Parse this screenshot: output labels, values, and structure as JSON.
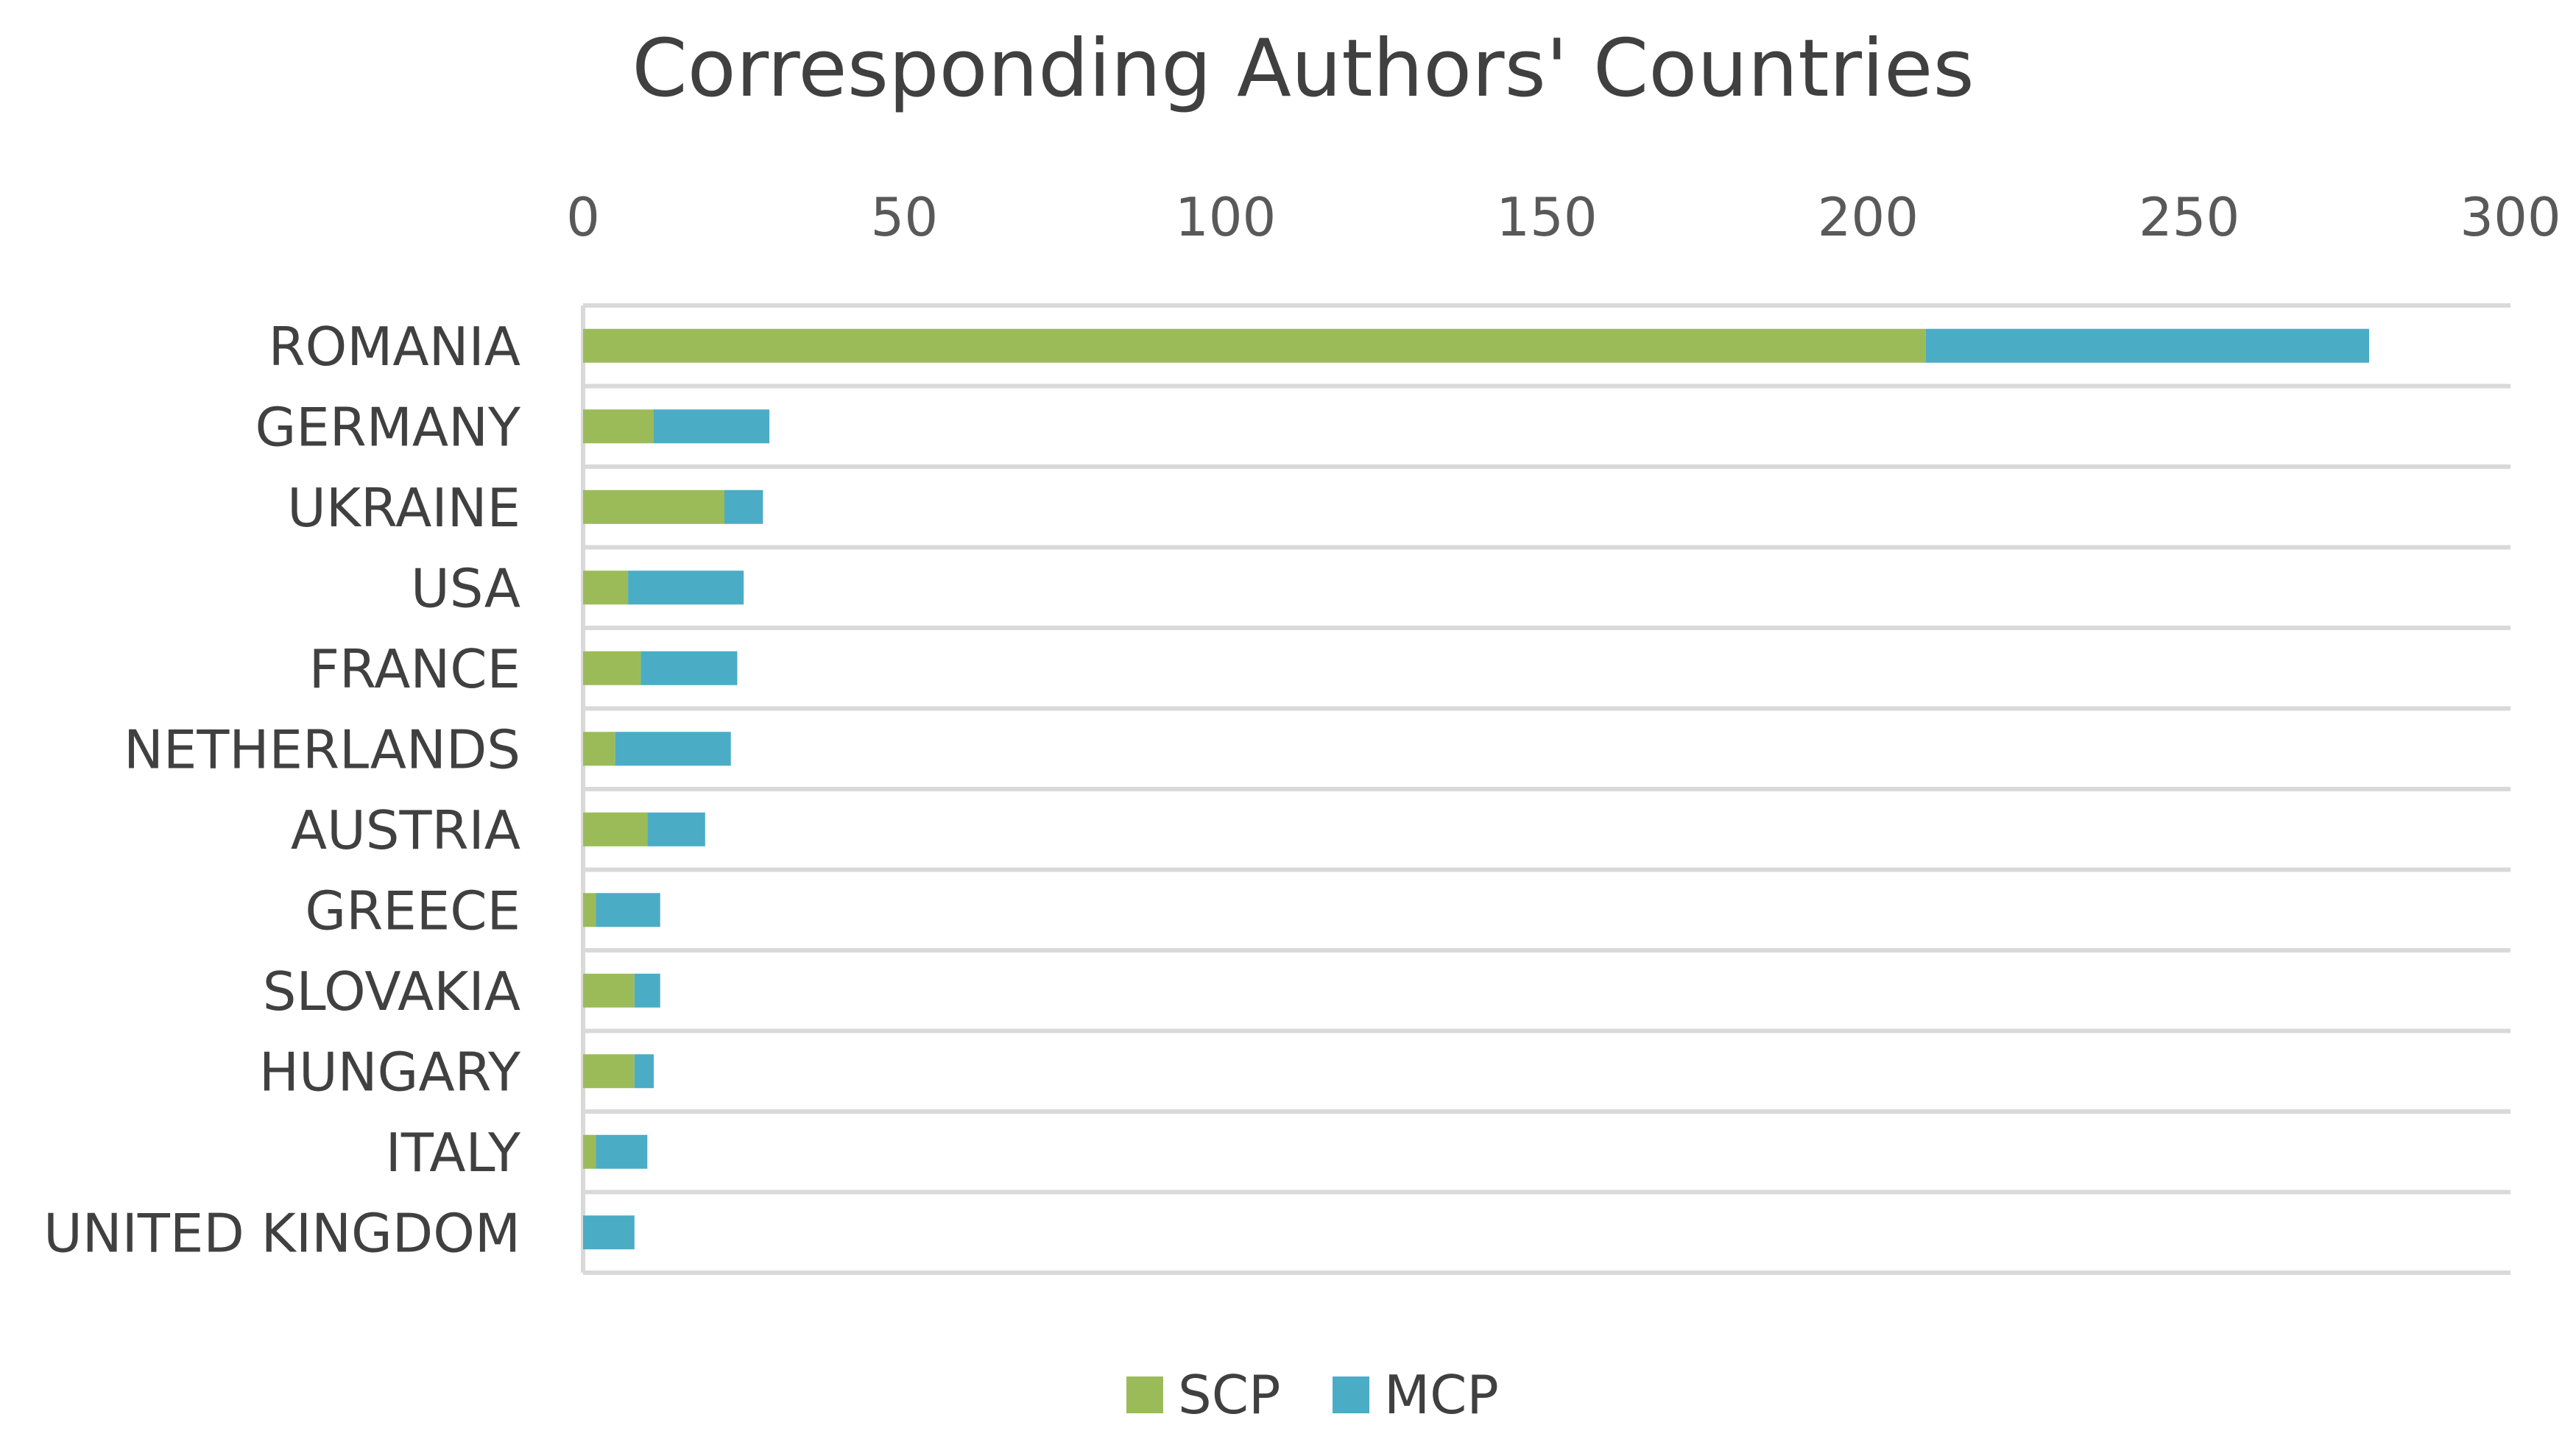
{
  "chart_data": {
    "type": "bar",
    "orientation": "horizontal",
    "stacked": true,
    "title": "Corresponding Authors' Countries",
    "categories": [
      "ROMANIA",
      "GERMANY",
      "UKRAINE",
      "USA",
      "FRANCE",
      "NETHERLANDS",
      "AUSTRIA",
      "GREECE",
      "SLOVAKIA",
      "HUNGARY",
      "ITALY",
      "UNITED KINGDOM"
    ],
    "series": [
      {
        "name": "SCP",
        "color": "#9bbb59",
        "values": [
          209,
          11,
          22,
          7,
          9,
          5,
          10,
          2,
          8,
          8,
          2,
          0
        ]
      },
      {
        "name": "MCP",
        "color": "#4bacc6",
        "values": [
          69,
          18,
          6,
          18,
          15,
          18,
          9,
          10,
          4,
          3,
          8,
          8
        ]
      }
    ],
    "xlim": [
      0,
      300
    ],
    "xticks": [
      0,
      50,
      100,
      150,
      200,
      250,
      300
    ],
    "x_axis_position": "top",
    "grid": true,
    "legend_position": "bottom"
  }
}
